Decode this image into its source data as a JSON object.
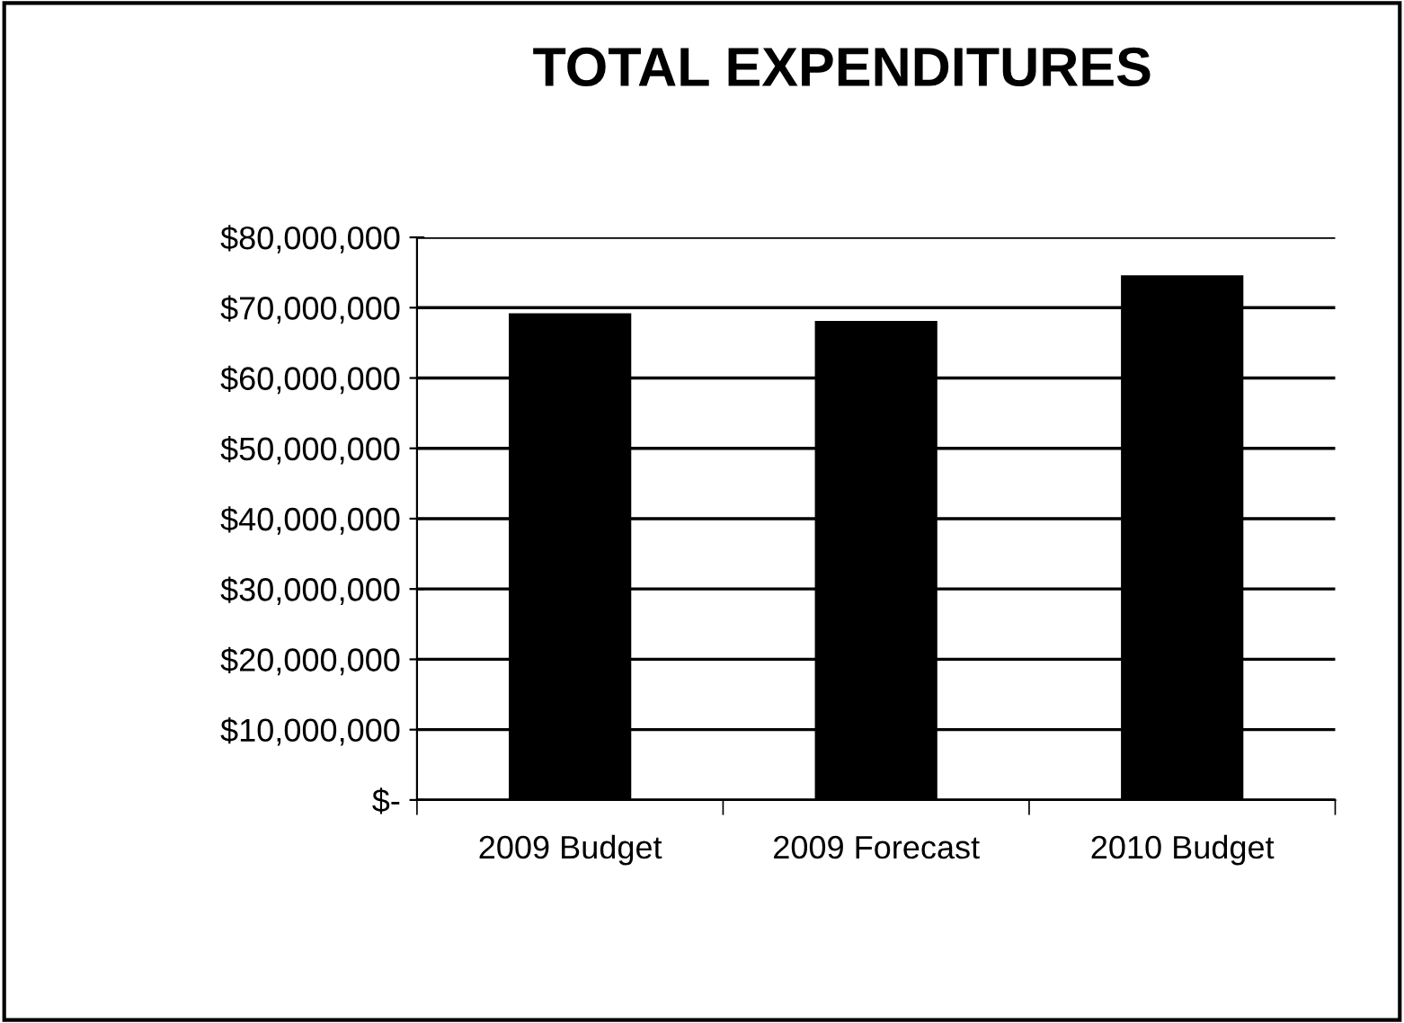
{
  "chart_data": {
    "type": "bar",
    "title": "TOTAL EXPENDITURES",
    "categories": [
      "2009 Budget",
      "2009 Forecast",
      "2010 Budget"
    ],
    "values": [
      69200000,
      68100000,
      74600000
    ],
    "color": "#000000",
    "ylim": [
      0,
      80000000
    ],
    "yticks": [
      {
        "value": 0,
        "label": "$-"
      },
      {
        "value": 10000000,
        "label": "$10,000,000"
      },
      {
        "value": 20000000,
        "label": "$20,000,000"
      },
      {
        "value": 30000000,
        "label": "$30,000,000"
      },
      {
        "value": 40000000,
        "label": "$40,000,000"
      },
      {
        "value": 50000000,
        "label": "$50,000,000"
      },
      {
        "value": 60000000,
        "label": "$60,000,000"
      },
      {
        "value": 70000000,
        "label": "$70,000,000"
      },
      {
        "value": 80000000,
        "label": "$80,000,000"
      }
    ],
    "grid": "y",
    "legend": false
  }
}
